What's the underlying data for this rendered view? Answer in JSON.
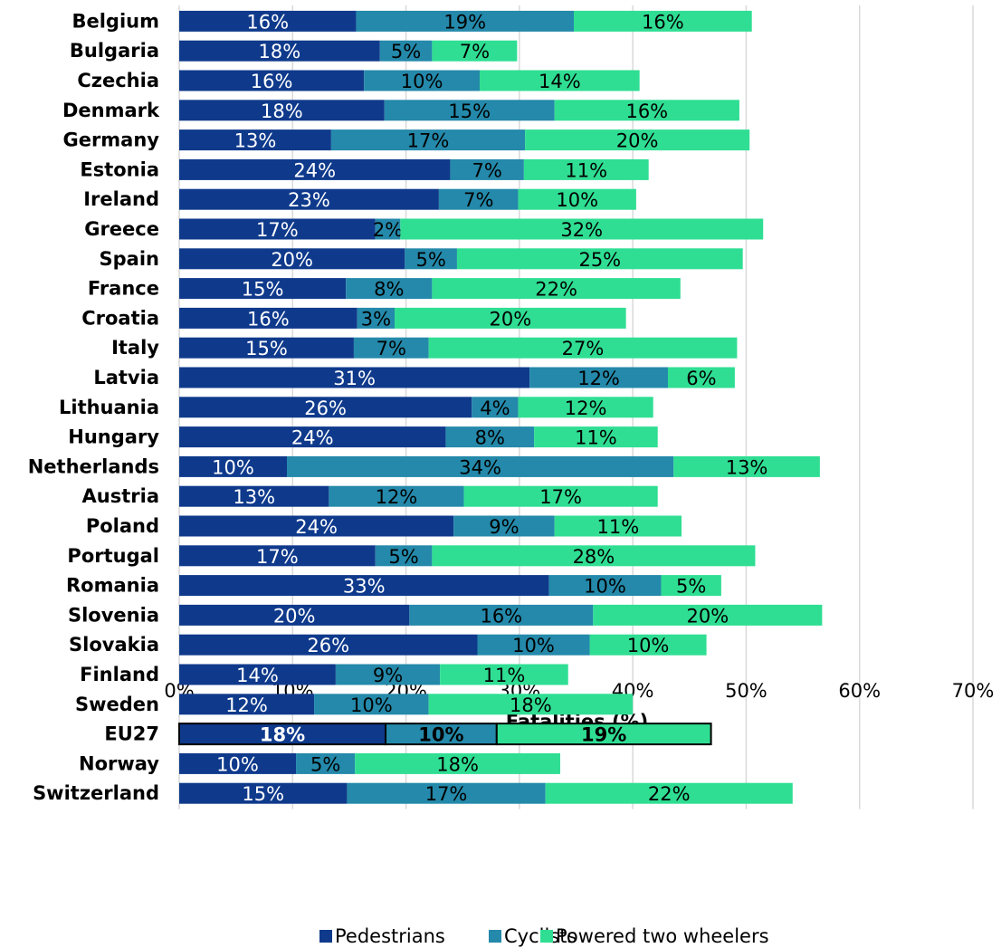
{
  "chart_data": {
    "type": "bar",
    "orientation": "horizontal",
    "stacked": true,
    "categories": [
      "Belgium",
      "Bulgaria",
      "Czechia",
      "Denmark",
      "Germany",
      "Estonia",
      "Ireland",
      "Greece",
      "Spain",
      "France",
      "Croatia",
      "Italy",
      "Latvia",
      "Lithuania",
      "Hungary",
      "Netherlands",
      "Austria",
      "Poland",
      "Portugal",
      "Romania",
      "Slovenia",
      "Slovakia",
      "Finland",
      "Sweden",
      "EU27",
      "Norway",
      "Switzerland"
    ],
    "series": [
      {
        "name": "Pedestrians",
        "color": "#0f3a8c",
        "values": [
          15.6,
          17.7,
          16.3,
          18.1,
          13.4,
          23.9,
          22.9,
          17.3,
          19.9,
          14.7,
          15.7,
          15.4,
          30.9,
          25.8,
          23.5,
          9.5,
          13.2,
          24.2,
          17.3,
          32.6,
          20.3,
          26.3,
          13.8,
          11.9,
          18.2,
          10.3,
          14.8
        ],
        "labels": [
          "16%",
          "18%",
          "16%",
          "18%",
          "13%",
          "24%",
          "23%",
          "17%",
          "20%",
          "15%",
          "16%",
          "15%",
          "31%",
          "26%",
          "24%",
          "10%",
          "13%",
          "24%",
          "17%",
          "33%",
          "20%",
          "26%",
          "14%",
          "12%",
          "18%",
          "10%",
          "15%"
        ]
      },
      {
        "name": "Cyclists",
        "color": "#2489aa",
        "values": [
          19.2,
          4.6,
          10.2,
          15.0,
          17.1,
          6.5,
          7.0,
          2.2,
          4.6,
          7.6,
          3.3,
          6.6,
          12.2,
          4.1,
          7.8,
          34.1,
          11.9,
          8.9,
          5.0,
          9.9,
          16.2,
          9.9,
          9.2,
          10.1,
          9.8,
          5.2,
          17.5
        ],
        "labels": [
          "19%",
          "5%",
          "10%",
          "15%",
          "17%",
          "7%",
          "7%",
          "2%",
          "5%",
          "8%",
          "3%",
          "7%",
          "12%",
          "4%",
          "8%",
          "34%",
          "12%",
          "9%",
          "5%",
          "10%",
          "16%",
          "10%",
          "9%",
          "10%",
          "10%",
          "5%",
          "17%"
        ]
      },
      {
        "name": "Powered two wheelers",
        "color": "#2fde93",
        "values": [
          15.7,
          7.5,
          14.1,
          16.3,
          19.8,
          11.0,
          10.4,
          32.0,
          25.2,
          21.9,
          20.4,
          27.2,
          5.9,
          11.9,
          10.9,
          12.9,
          17.1,
          11.2,
          28.5,
          5.3,
          20.2,
          10.3,
          11.3,
          18.0,
          18.9,
          18.1,
          21.8
        ],
        "labels": [
          "16%",
          "7%",
          "14%",
          "16%",
          "20%",
          "11%",
          "10%",
          "32%",
          "25%",
          "22%",
          "20%",
          "27%",
          "6%",
          "12%",
          "11%",
          "13%",
          "17%",
          "11%",
          "28%",
          "5%",
          "20%",
          "10%",
          "11%",
          "18%",
          "19%",
          "18%",
          "22%"
        ]
      }
    ],
    "highlight_category": "EU27",
    "xlabel": "Fatalities (%)",
    "ylabel": "",
    "title": "",
    "xlim": [
      0,
      70
    ],
    "xticks": [
      "0%",
      "10%",
      "20%",
      "30%",
      "40%",
      "50%",
      "60%",
      "70%"
    ],
    "grid": "vertical",
    "legend_position": "bottom"
  }
}
